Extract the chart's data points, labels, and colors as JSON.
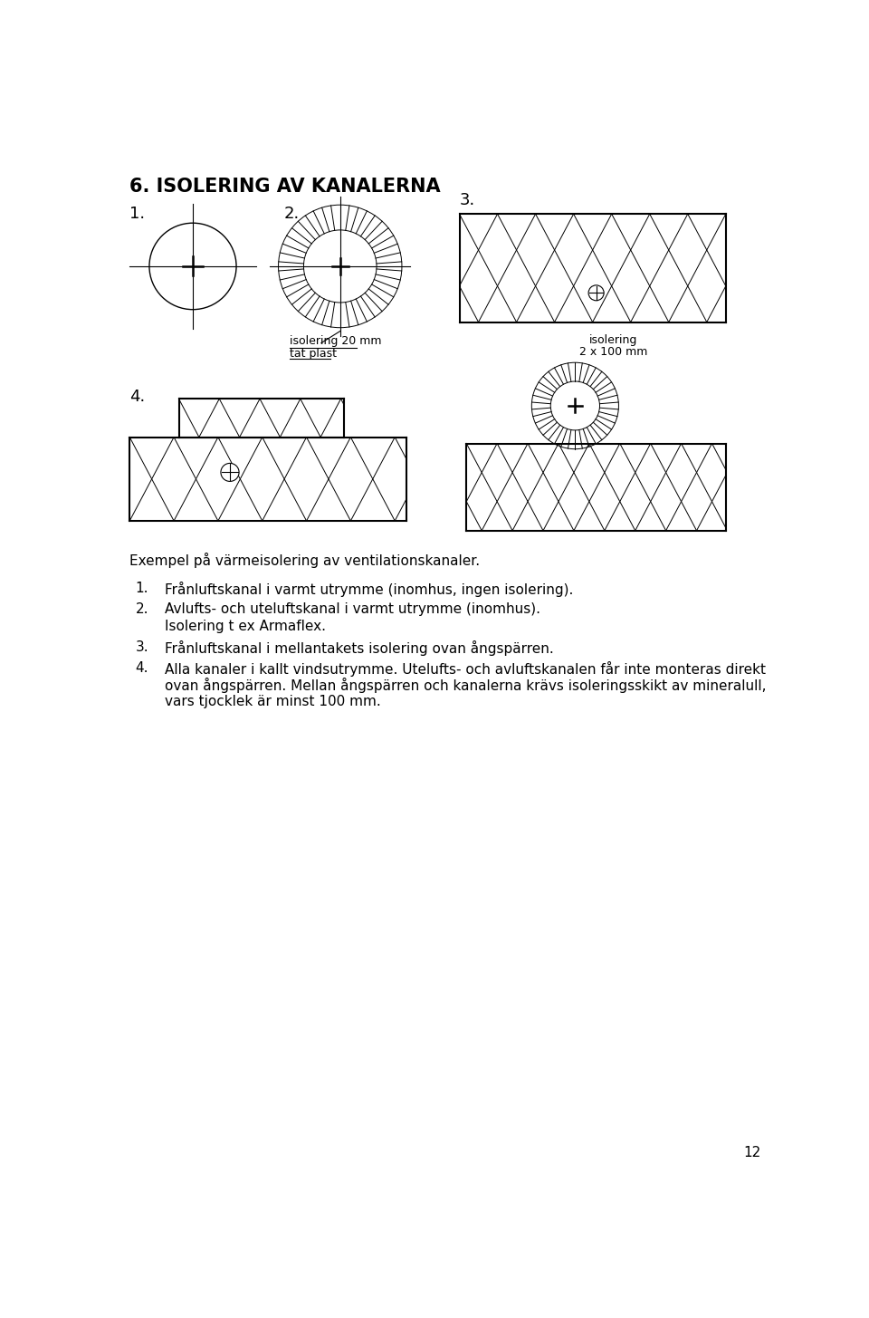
{
  "title": "6. ISOLERING AV KANALERNA",
  "title_fontsize": 16,
  "background_color": "#ffffff",
  "text_color": "#000000",
  "label1": "1.",
  "label2": "2.",
  "label3": "3.",
  "label4": "4.",
  "annotation2a": "isolering 20 mm",
  "annotation2b": "tät plast",
  "annotation3a": "isolering",
  "annotation3b": "2 x 100 mm",
  "caption": "Exempel på värmeisolering av ventilationskanaler.",
  "bullet1": "Frånluftskanal i varmt utrymme (inomhus, ingen isolering).",
  "bullet2a": "Avlufts- och uteluftskanal i varmt utrymme (inomhus).",
  "bullet2b": "Isolering t ex Armaflex.",
  "bullet3": "Frånluftskanal i mellantakets isolering ovan ångspärren.",
  "bullet4a": "Alla kanaler i kallt vindsutrymme. Utelufts- och avluftskanalen får inte monteras direkt",
  "bullet4b": "ovan ångspärren. Mellan ångspärren och kanalerna krävs isoleringsskikt av mineralull,",
  "bullet4c": "vars tjocklek är minst 100 mm.",
  "page_number": "12"
}
